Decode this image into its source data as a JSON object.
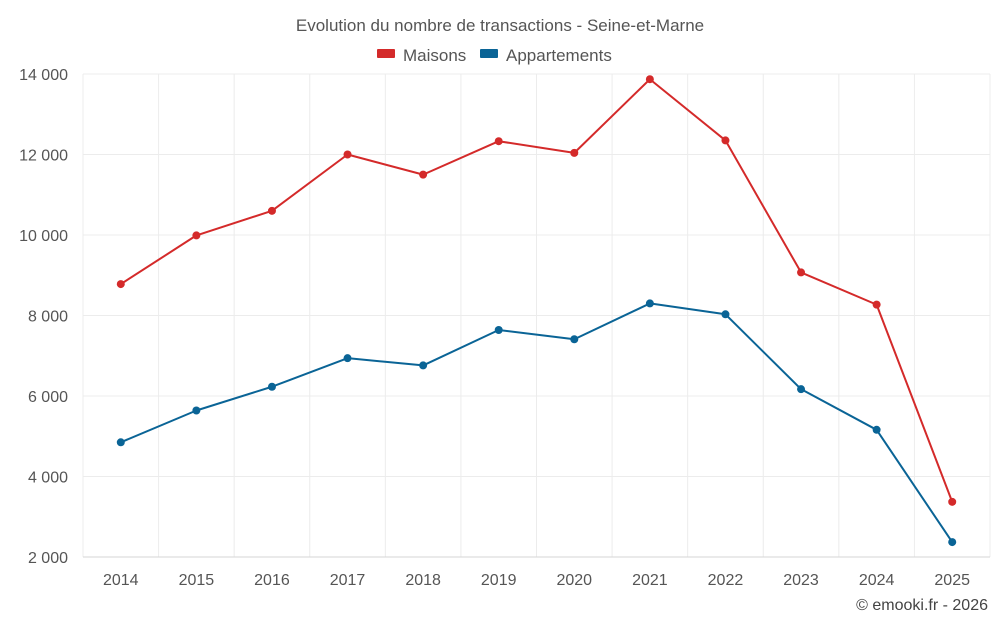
{
  "chart_data": {
    "type": "line",
    "title": "Evolution du nombre de transactions - Seine-et-Marne",
    "categories": [
      "2014",
      "2015",
      "2016",
      "2017",
      "2018",
      "2019",
      "2020",
      "2021",
      "2022",
      "2023",
      "2024",
      "2025"
    ],
    "series": [
      {
        "name": "Maisons",
        "color": "#d42a2a",
        "values": [
          8780,
          9990,
          10600,
          12000,
          11500,
          12330,
          12040,
          13870,
          12350,
          9070,
          8270,
          3370
        ]
      },
      {
        "name": "Appartements",
        "color": "#0a6496",
        "values": [
          4850,
          5640,
          6230,
          6940,
          6760,
          7640,
          7410,
          8300,
          8030,
          6170,
          5160,
          2370
        ]
      }
    ],
    "xlabel": "",
    "ylabel": "",
    "ylim": [
      2000,
      14000
    ],
    "yticks": [
      2000,
      4000,
      6000,
      8000,
      10000,
      12000,
      14000
    ],
    "ytick_labels": [
      "2 000",
      "4 000",
      "6 000",
      "8 000",
      "10 000",
      "12 000",
      "14 000"
    ],
    "grid": true,
    "legend_position": "top-center"
  },
  "credit": "© emooki.fr - 2026"
}
